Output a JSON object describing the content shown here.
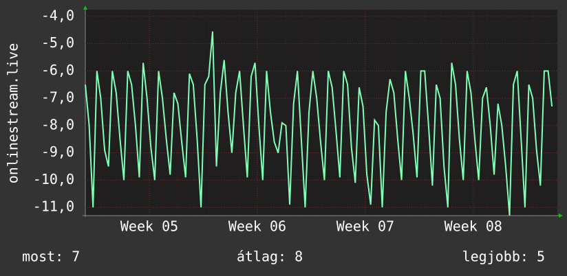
{
  "chart_data": {
    "type": "line",
    "y_label": "onlinestream.live",
    "x": [
      0,
      0.25,
      0.5,
      0.75,
      1,
      1.25,
      1.5,
      1.75,
      2,
      2.25,
      2.5,
      2.75,
      3,
      3.25,
      3.5,
      3.75,
      4,
      4.25,
      4.5,
      4.75,
      5,
      5.25,
      5.5,
      5.75,
      6,
      6.25,
      6.5,
      6.75,
      7,
      7.25,
      7.5,
      7.75,
      8,
      8.25,
      8.5,
      8.75,
      9,
      9.25,
      9.5,
      9.75,
      10,
      10.25,
      10.5,
      10.75,
      11,
      11.25,
      11.5,
      11.75,
      12,
      12.25,
      12.5,
      12.75,
      13,
      13.25,
      13.5,
      13.75,
      14,
      14.25,
      14.5,
      14.75,
      15,
      15.25,
      15.5,
      15.75,
      16,
      16.25,
      16.5,
      16.75,
      17,
      17.25,
      17.5,
      17.75,
      18,
      18.25,
      18.5,
      18.75,
      19,
      19.25,
      19.5,
      19.75,
      20,
      20.25,
      20.5,
      20.75,
      21,
      21.25,
      21.5,
      21.75,
      22,
      22.25,
      22.5,
      22.75,
      23,
      23.25,
      23.5,
      23.75,
      24,
      24.25,
      24.5,
      24.75,
      25,
      25.25,
      25.5,
      25.75,
      26,
      26.25,
      26.5,
      26.75,
      27,
      27.25,
      27.5,
      27.75,
      28,
      28.25,
      28.5,
      28.75,
      29,
      29.25,
      29.5,
      29.75,
      30,
      30.25
    ],
    "series": [
      {
        "name": "onlinestream.live",
        "color": "#80ffb4",
        "values": [
          -6.5,
          -8.0,
          -11.0,
          -6.0,
          -7.0,
          -8.9,
          -9.5,
          -6.0,
          -6.8,
          -8.5,
          -10.0,
          -6.0,
          -6.5,
          -8.0,
          -9.9,
          -5.7,
          -7.0,
          -8.8,
          -10.0,
          -6.0,
          -7.0,
          -8.5,
          -9.8,
          -6.8,
          -7.2,
          -8.6,
          -9.9,
          -6.1,
          -6.5,
          -8.5,
          -11.0,
          -6.5,
          -6.2,
          -4.55,
          -9.5,
          -6.8,
          -5.6,
          -7.5,
          -9.0,
          -6.8,
          -6.0,
          -8.0,
          -9.9,
          -6.2,
          -5.7,
          -8.0,
          -10.0,
          -6.0,
          -7.5,
          -8.6,
          -9.0,
          -7.9,
          -8.0,
          -10.9,
          -7.2,
          -6.0,
          -8.5,
          -11.0,
          -7.5,
          -6.0,
          -7.0,
          -8.6,
          -10.0,
          -6.0,
          -6.6,
          -8.2,
          -9.9,
          -6.0,
          -6.5,
          -8.8,
          -10.1,
          -6.6,
          -7.3,
          -9.8,
          -10.9,
          -7.8,
          -8.0,
          -11.0,
          -7.5,
          -6.3,
          -6.8,
          -8.5,
          -10.0,
          -6.0,
          -7.0,
          -8.3,
          -9.9,
          -6.0,
          -6.0,
          -8.0,
          -10.2,
          -6.5,
          -7.0,
          -9.5,
          -11.0,
          -5.7,
          -6.5,
          -8.5,
          -10.0,
          -6.0,
          -6.8,
          -8.5,
          -10.0,
          -7.0,
          -6.6,
          -8.0,
          -9.8,
          -7.2,
          -8.0,
          -9.5,
          -11.3,
          -6.5,
          -6.0,
          -8.5,
          -11.0,
          -6.5,
          -7.0,
          -8.9,
          -10.2,
          -6.0,
          -6.0,
          -7.3
        ]
      }
    ],
    "xlim": [
      0,
      30.6
    ],
    "xticks": [
      {
        "value": 4.15,
        "label": "Week 05"
      },
      {
        "value": 11.15,
        "label": "Week 06"
      },
      {
        "value": 18.15,
        "label": "Week 07"
      },
      {
        "value": 25.15,
        "label": "Week 08"
      }
    ],
    "ylim": [
      -11.3,
      -3.75
    ],
    "yticks": [
      {
        "value": -4,
        "label": "-4,0"
      },
      {
        "value": -5,
        "label": "-5,0"
      },
      {
        "value": -6,
        "label": "-6,0"
      },
      {
        "value": -7,
        "label": "-7,0"
      },
      {
        "value": -8,
        "label": "-8,0"
      },
      {
        "value": -9,
        "label": "-9,0"
      },
      {
        "value": -10,
        "label": "-10,0"
      },
      {
        "value": -11,
        "label": "-11,0"
      }
    ],
    "grid": true,
    "footer": [
      "most: 7",
      "átlag: 8",
      "legjobb: 5"
    ]
  }
}
